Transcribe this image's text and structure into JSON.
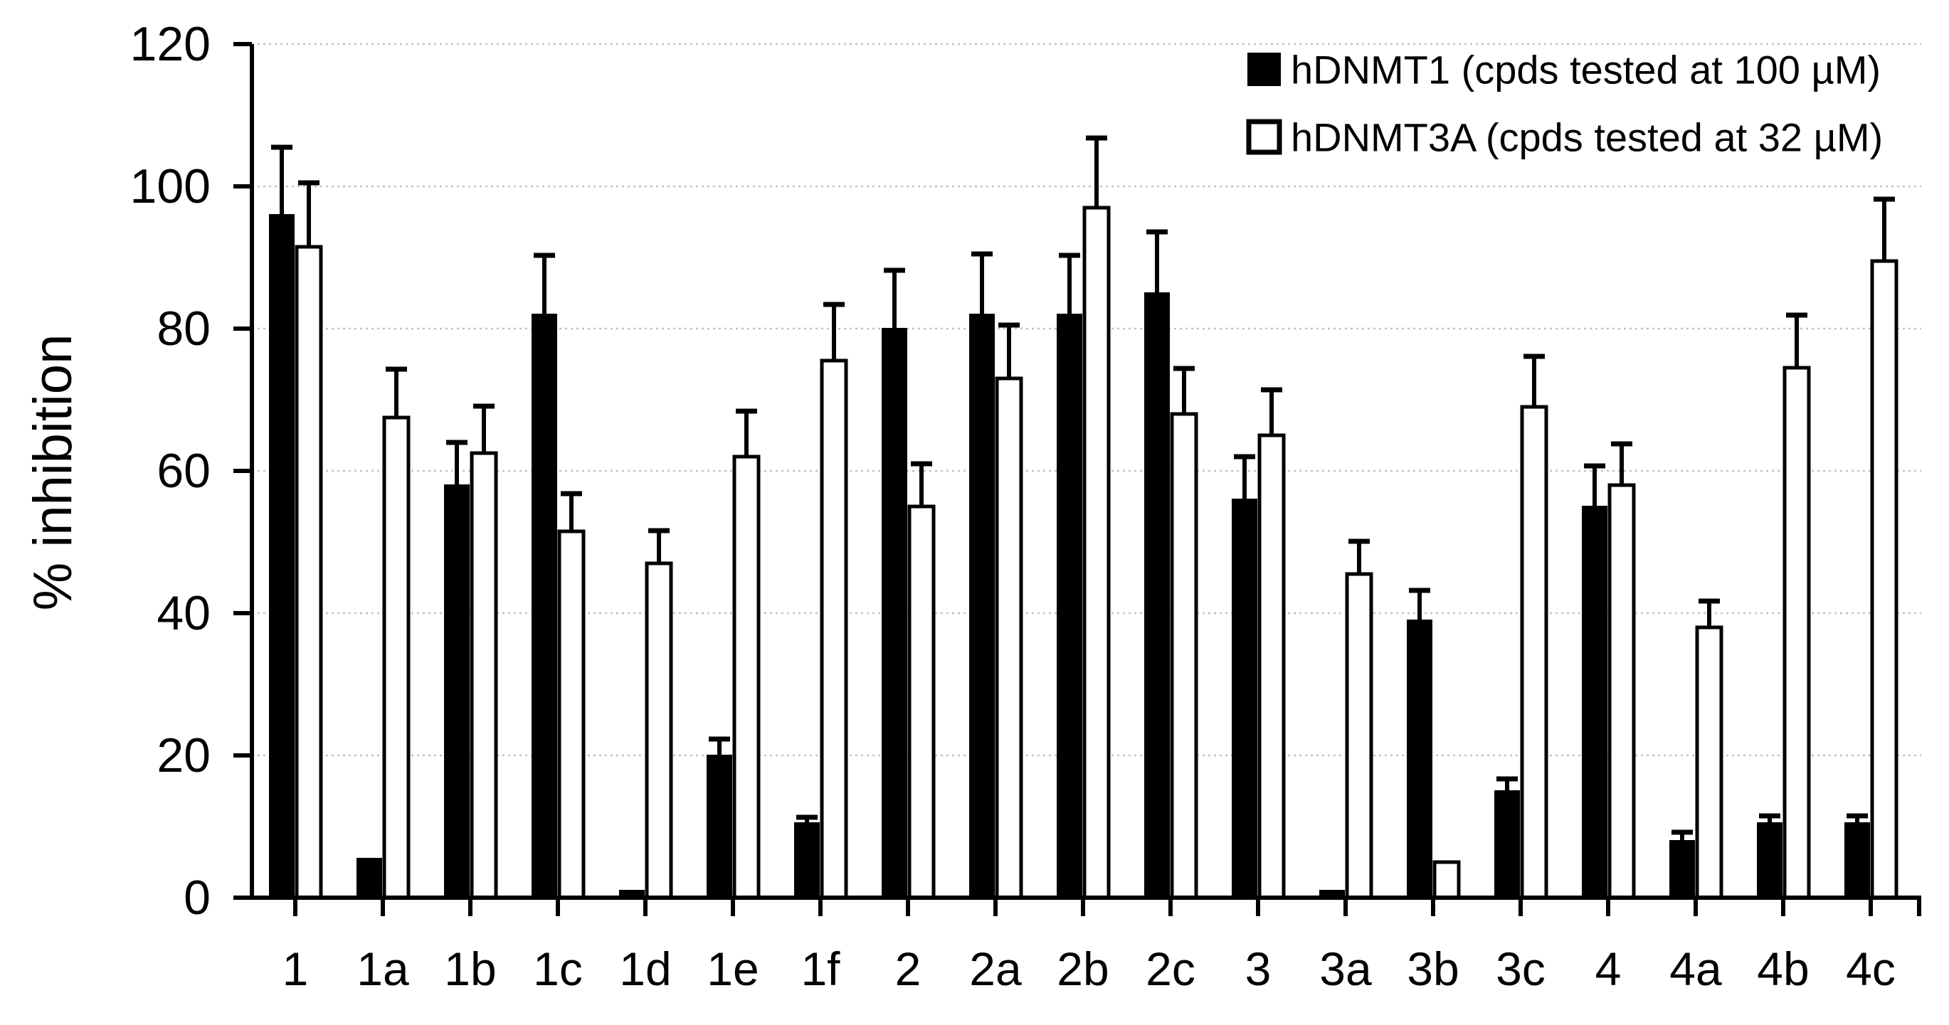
{
  "figure": {
    "background": "#ffffff",
    "bar_fill_series1": "#000000",
    "bar_fill_series2": "#ffffff",
    "bar_stroke": "#000000",
    "gridline_color": "#c3c3c3",
    "axis_color": "#000000",
    "text_color": "#000000"
  },
  "y_axis": {
    "title": "% inhibition",
    "ticks": [
      0,
      20,
      40,
      60,
      80,
      100,
      120
    ]
  },
  "legend": {
    "items": [
      {
        "label": "hDNMT1 (cpds tested at 100 µM)",
        "swatch": "#000000"
      },
      {
        "label": "hDNMT3A (cpds tested at 32 µM)",
        "swatch": "#ffffff"
      }
    ]
  },
  "chart_data": {
    "type": "bar",
    "title": "",
    "xlabel": "",
    "ylabel": "% inhibition",
    "ylim": [
      0,
      120
    ],
    "ytick_interval": 20,
    "grid": "horizontal dashed light-gray",
    "legend_position": "top-right inside plot",
    "error_bars": "upper whiskers with caps",
    "categories": [
      "1",
      "1a",
      "1b",
      "1c",
      "1d",
      "1e",
      "1f",
      "2",
      "2a",
      "2b",
      "2c",
      "3",
      "3a",
      "3b",
      "3c",
      "4",
      "4a",
      "4b",
      "4c"
    ],
    "series": [
      {
        "name": "hDNMT1 (cpds tested at 100 µM)",
        "fill": "#000000",
        "stroke": "#000000",
        "values": [
          96,
          5.5,
          58,
          82,
          1,
          20,
          10.5,
          80,
          82,
          82,
          85,
          56,
          1,
          39,
          15,
          55,
          8,
          10.5,
          10.5
        ],
        "errors": [
          9.5,
          0,
          6,
          8.3,
          0,
          2.3,
          0.8,
          8.2,
          8.5,
          8.3,
          8.6,
          6,
          0,
          4.2,
          1.7,
          5.7,
          1.2,
          1,
          1
        ]
      },
      {
        "name": "hDNMT3A (cpds tested at 32 µM)",
        "fill": "#ffffff",
        "stroke": "#000000",
        "values": [
          91.5,
          67.5,
          62.5,
          51.5,
          47,
          62,
          75.5,
          55,
          73,
          97,
          68,
          65,
          45.5,
          5,
          69,
          58,
          38,
          74.5,
          89.5
        ],
        "errors": [
          9,
          6.8,
          6.6,
          5.3,
          4.6,
          6.4,
          7.9,
          6,
          7.5,
          9.8,
          6.4,
          6.4,
          4.6,
          0,
          7.1,
          5.8,
          3.7,
          7.4,
          8.7
        ]
      }
    ]
  }
}
